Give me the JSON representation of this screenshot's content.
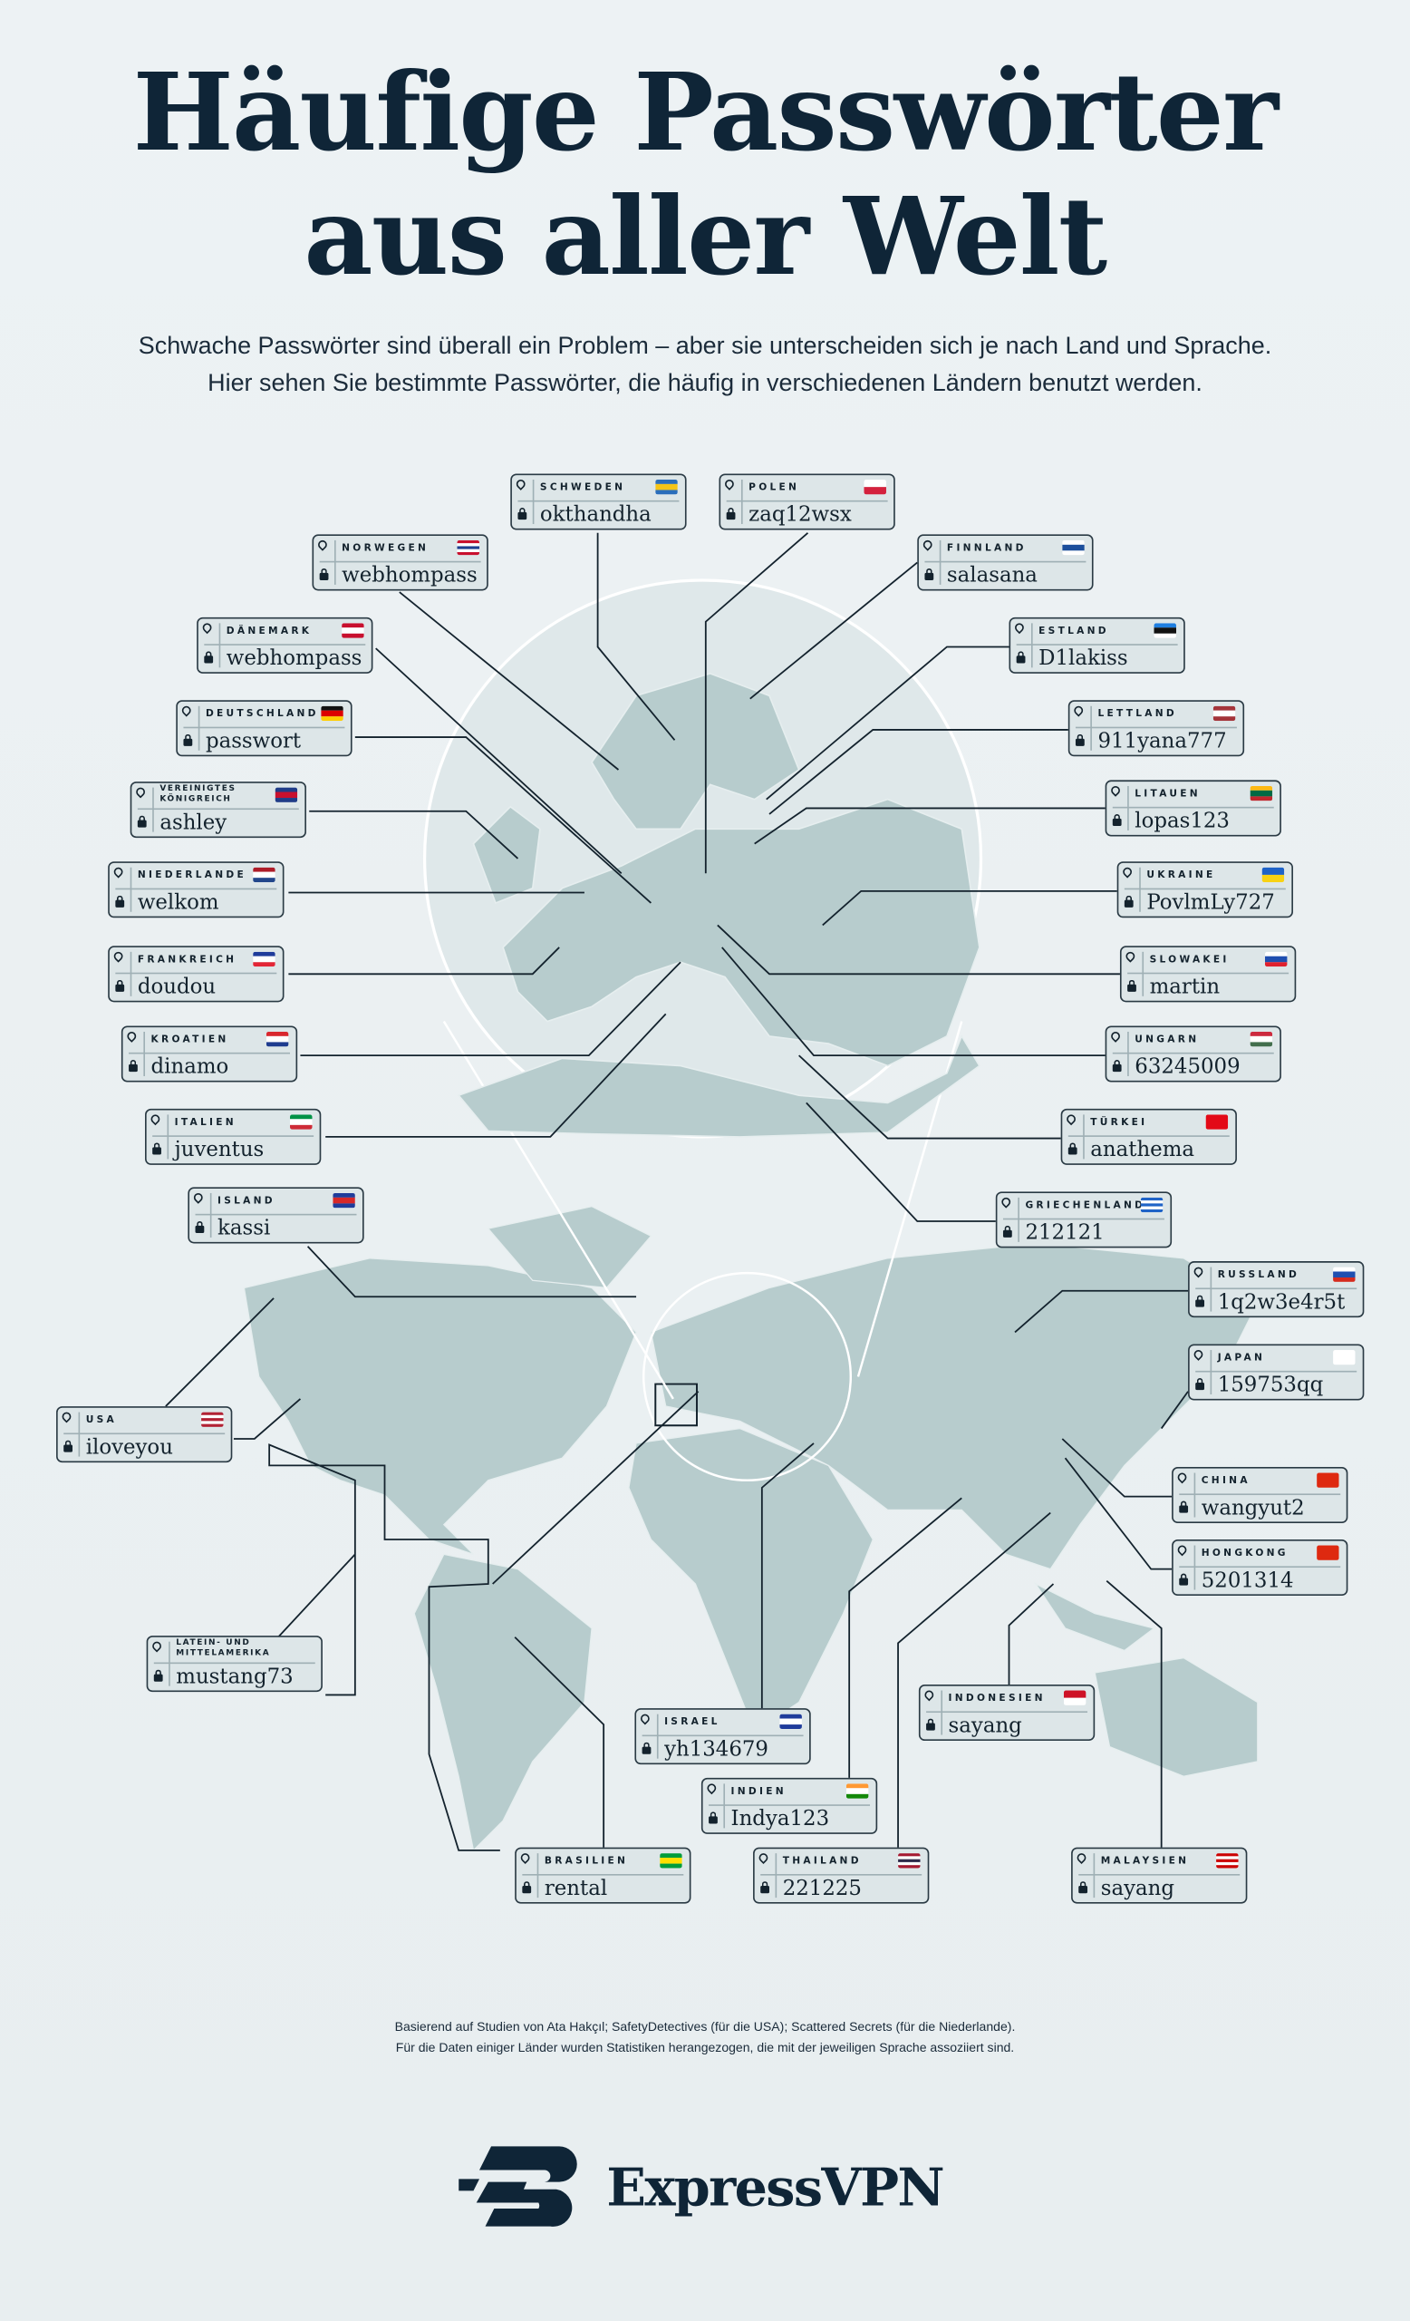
{
  "title": {
    "line1": "Häufige Passwörter",
    "line2": "aus aller Welt"
  },
  "subtitle": {
    "line1": "Schwache Passwörter sind überall ein Problem – aber sie unterscheiden sich je nach Land und Sprache.",
    "line2": "Hier sehen Sie bestimmte Passwörter, die häufig in verschiedenen Ländern benutzt werden."
  },
  "icons": {
    "location": "map-pin-icon",
    "password": "lock-icon"
  },
  "colors": {
    "text": "#0f2537",
    "land": "#b7cccd",
    "card_bg": "#dde6e8"
  },
  "countries": [
    {
      "name": "SCHWEDEN",
      "password": "okthandha",
      "flag": [
        "#2a6ebb",
        "#f5c518",
        "#2a6ebb"
      ]
    },
    {
      "name": "POLEN",
      "password": "zaq12wsx",
      "flag": [
        "#ffffff",
        "#d4213d"
      ]
    },
    {
      "name": "NORWEGEN",
      "password": "webhompass",
      "flag": [
        "#c8102e",
        "#ffffff",
        "#1d3f8f",
        "#ffffff",
        "#c8102e"
      ]
    },
    {
      "name": "FINNLAND",
      "password": "salasana",
      "flag": [
        "#ffffff",
        "#1d4f9c",
        "#ffffff"
      ]
    },
    {
      "name": "DÄNEMARK",
      "password": "webhompass",
      "flag": [
        "#c8102e",
        "#ffffff",
        "#c8102e"
      ]
    },
    {
      "name": "ESTLAND",
      "password": "D1lakiss",
      "flag": [
        "#1f7fe0",
        "#111111",
        "#ffffff"
      ]
    },
    {
      "name": "DEUTSCHLAND",
      "password": "passwort",
      "flag": [
        "#111111",
        "#dd0000",
        "#ffce00"
      ]
    },
    {
      "name": "LETTLAND",
      "password": "911yana777",
      "flag": [
        "#a4343a",
        "#ffffff",
        "#a4343a"
      ]
    },
    {
      "name": "VEREINIGTES KÖNIGREICH",
      "password": "ashley",
      "flag": [
        "#1f3c88",
        "#c8102e",
        "#1f3c88"
      ]
    },
    {
      "name": "LITAUEN",
      "password": "lopas123",
      "flag": [
        "#fdb913",
        "#006a44",
        "#c1272d"
      ]
    },
    {
      "name": "NIEDERLANDE",
      "password": "welkom",
      "flag": [
        "#ae1c28",
        "#ffffff",
        "#21468b"
      ]
    },
    {
      "name": "UKRAINE",
      "password": "PovlmLy727",
      "flag": [
        "#1f63c7",
        "#f8d213"
      ]
    },
    {
      "name": "FRANKREICH",
      "password": "doudou",
      "flag": [
        "#1f3c9b",
        "#ffffff",
        "#e32636"
      ]
    },
    {
      "name": "SLOWAKEI",
      "password": "martin",
      "flag": [
        "#ffffff",
        "#1f4fb0",
        "#e0202e"
      ]
    },
    {
      "name": "KROATIEN",
      "password": "dinamo",
      "flag": [
        "#d9272e",
        "#ffffff",
        "#1f3c8f"
      ]
    },
    {
      "name": "UNGARN",
      "password": "63245009",
      "flag": [
        "#cd2a3e",
        "#ffffff",
        "#436f4d"
      ]
    },
    {
      "name": "ITALIEN",
      "password": "juventus",
      "flag": [
        "#009246",
        "#ffffff",
        "#ce2b37"
      ]
    },
    {
      "name": "TÜRKEI",
      "password": "anathema",
      "flag": [
        "#e30a17"
      ]
    },
    {
      "name": "ISLAND",
      "password": "kassi",
      "flag": [
        "#1f3c9b",
        "#d72828",
        "#1f3c9b"
      ]
    },
    {
      "name": "GRIECHENLAND",
      "password": "212121",
      "flag": [
        "#1f63c7",
        "#ffffff",
        "#1f63c7",
        "#ffffff",
        "#1f63c7"
      ]
    },
    {
      "name": "RUSSLAND",
      "password": "1q2w3e4r5t",
      "flag": [
        "#ffffff",
        "#1f4fb0",
        "#d52b1e"
      ]
    },
    {
      "name": "JAPAN",
      "password": "159753qq",
      "flag": [
        "#ffffff"
      ]
    },
    {
      "name": "USA",
      "password": "iloveyou",
      "flag": [
        "#b22234",
        "#ffffff",
        "#b22234",
        "#ffffff",
        "#b22234"
      ]
    },
    {
      "name": "CHINA",
      "password": "wangyut2",
      "flag": [
        "#de2910"
      ]
    },
    {
      "name": "HONGKONG",
      "password": "5201314",
      "flag": [
        "#de2910"
      ]
    },
    {
      "name": "LATEIN- UND MITTELAMERIKA",
      "password": "mustang73",
      "flag": []
    },
    {
      "name": "INDONESIEN",
      "password": "sayang",
      "flag": [
        "#ce1126",
        "#ffffff"
      ]
    },
    {
      "name": "ISRAEL",
      "password": "yh134679",
      "flag": [
        "#1f3c9b",
        "#ffffff",
        "#1f3c9b"
      ]
    },
    {
      "name": "INDIEN",
      "password": "Indya123",
      "flag": [
        "#ff9933",
        "#ffffff",
        "#138808"
      ]
    },
    {
      "name": "BRASILIEN",
      "password": "rental",
      "flag": [
        "#009c3b",
        "#ffdf00",
        "#009c3b"
      ]
    },
    {
      "name": "THAILAND",
      "password": "221225",
      "flag": [
        "#a51931",
        "#ffffff",
        "#2d2a4a",
        "#ffffff",
        "#a51931"
      ]
    },
    {
      "name": "MALAYSIEN",
      "password": "sayang",
      "flag": [
        "#cc0001",
        "#ffffff",
        "#cc0001",
        "#ffffff",
        "#cc0001"
      ]
    }
  ],
  "footnote": {
    "line1": "Basierend auf Studien von Ata Hakçıl; SafetyDetectives (für die USA); Scattered Secrets (für die Niederlande).",
    "line2": "Für die Daten einiger Länder wurden Statistiken herangezogen, die mit der jeweiligen Sprache assoziiert sind."
  },
  "brand": {
    "name": "ExpressVPN"
  }
}
